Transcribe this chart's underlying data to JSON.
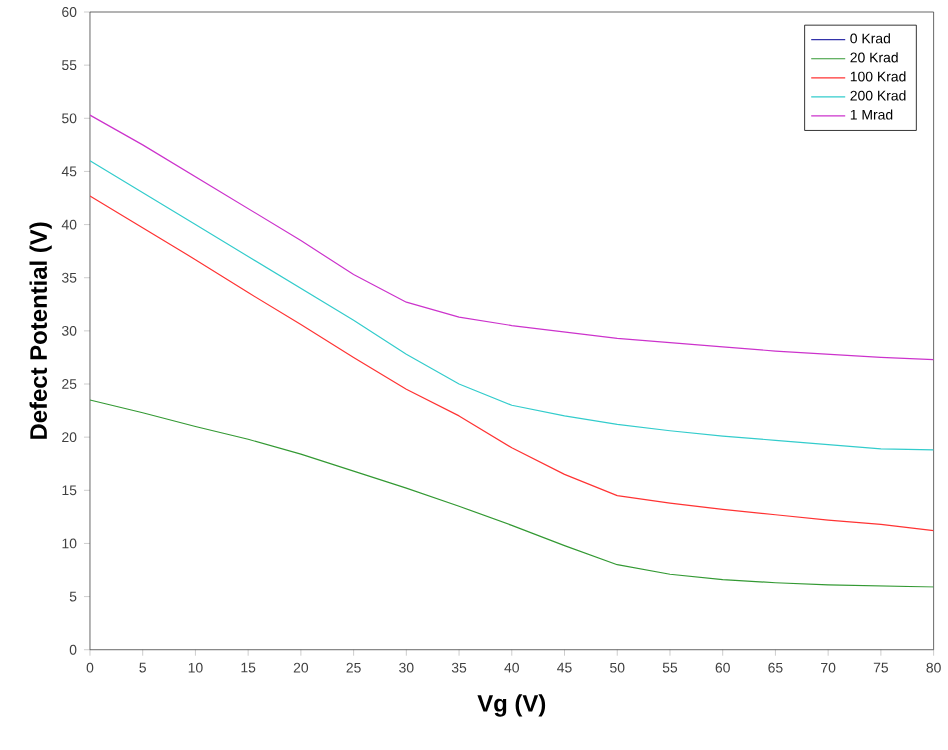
{
  "chart_data": {
    "type": "line",
    "xlabel": "Vg (V)",
    "ylabel": "Defect Potential (V)",
    "x": [
      0,
      5,
      10,
      15,
      20,
      25,
      30,
      35,
      40,
      45,
      50,
      55,
      60,
      65,
      70,
      75,
      80
    ],
    "series": [
      {
        "name": "0 Krad",
        "color": "#3333aa",
        "values": [
          null,
          null,
          null,
          null,
          null,
          null,
          null,
          null,
          null,
          null,
          null,
          null,
          null,
          null,
          null,
          null,
          null
        ]
      },
      {
        "name": "20 Krad",
        "color": "#339933",
        "values": [
          23.5,
          22.3,
          21,
          19.8,
          18.4,
          16.8,
          15.2,
          13.5,
          11.7,
          9.8,
          8,
          7.1,
          6.6,
          6.3,
          6.1,
          6,
          5.9
        ]
      },
      {
        "name": "100 Krad",
        "color": "#ff3333",
        "values": [
          42.7,
          39.7,
          36.7,
          33.6,
          30.6,
          27.5,
          24.5,
          22,
          19,
          16.5,
          14.5,
          13.8,
          13.2,
          12.7,
          12.2,
          11.8,
          11.2
        ]
      },
      {
        "name": "200 Krad",
        "color": "#33cccc",
        "values": [
          46,
          43,
          40,
          37,
          34,
          31,
          27.8,
          25,
          23,
          22,
          21.2,
          20.6,
          20.1,
          19.7,
          19.3,
          18.9,
          18.8
        ]
      },
      {
        "name": "1 Mrad",
        "color": "#cc33cc",
        "values": [
          50.3,
          47.5,
          44.5,
          41.5,
          38.5,
          35.3,
          32.7,
          31.3,
          30.5,
          29.9,
          29.3,
          28.9,
          28.5,
          28.1,
          27.8,
          27.5,
          27.3
        ]
      }
    ],
    "xlim": [
      0,
      80
    ],
    "ylim": [
      0,
      60
    ],
    "xticks": [
      0,
      5,
      10,
      15,
      20,
      25,
      30,
      35,
      40,
      45,
      50,
      55,
      60,
      65,
      70,
      75,
      80
    ],
    "yticks": [
      0,
      5,
      10,
      15,
      20,
      25,
      30,
      35,
      40,
      45,
      50,
      55,
      60
    ],
    "grid": false,
    "legend": "top right",
    "marker": "none",
    "line_style": "solid"
  }
}
